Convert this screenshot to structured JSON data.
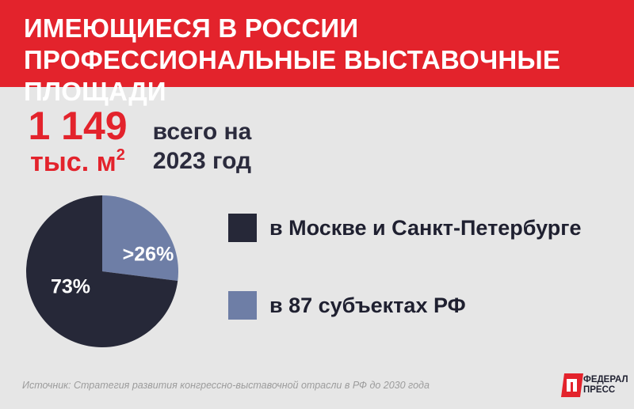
{
  "header": {
    "title": "ИМЕЮЩИЕСЯ В РОССИИ ПРОФЕССИОНАЛЬНЫЕ ВЫСТАВОЧНЫЕ ПЛОЩАДИ"
  },
  "total": {
    "value": "1 149",
    "unit": "тыс. м",
    "unit_sup": "2"
  },
  "period": {
    "text": "всего на 2023 год"
  },
  "chart_data": {
    "type": "pie",
    "series": [
      {
        "name": "в Москве и Санкт-Петербурге",
        "value": 73,
        "label": "73%",
        "color": "#262838"
      },
      {
        "name": "в 87 субъектах РФ",
        "value": 27,
        "label": ">26%",
        "color": "#6e7ea6"
      }
    ]
  },
  "source": {
    "text": "Источник: Стратегия развития конгрессно-выставочной отрасли в РФ до 2030 года"
  },
  "logo": {
    "line1": "ФЕДЕРАЛ",
    "line2": "ПРЕСС"
  },
  "colors": {
    "brand_red": "#e3232c",
    "background": "#e6e6e6",
    "text_dark": "#2b2b3d"
  }
}
